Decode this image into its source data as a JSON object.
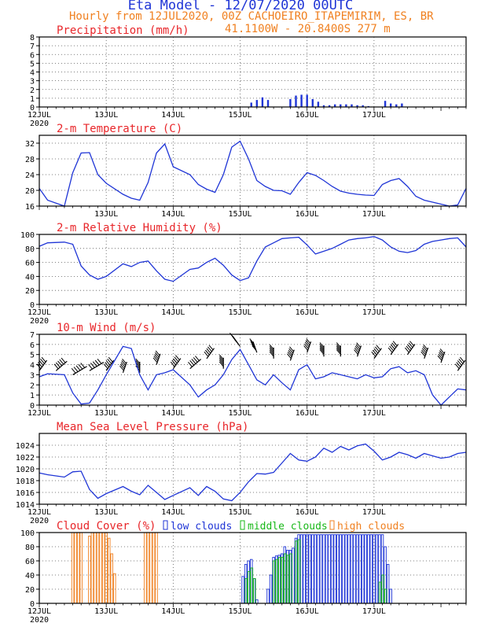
{
  "header": {
    "title": "Eta Model - 12/07/2020 00UTC",
    "subtitle": "Hourly from 12JUL2020, 00Z  CACHOEIRO_ITAPEMIRIM, ES, BR",
    "location": "41.1100W - 20.8400S     277  m"
  },
  "colors": {
    "title": "#1f35d6",
    "orange": "#f08020",
    "red": "#e8262a",
    "blue": "#1f35d6",
    "green": "#18b818",
    "barbs": "#000000"
  },
  "chart_data": [
    {
      "id": "precip",
      "type": "bar",
      "title": "Precipitation (mm/h)",
      "ylim": [
        0,
        8
      ],
      "yticks": [
        0,
        1,
        2,
        3,
        4,
        5,
        6,
        7,
        8
      ],
      "x_labels": [
        "12JUL",
        "13JUL",
        "14JUL",
        "15JUL",
        "16JUL",
        "17JUL"
      ],
      "year_label": "2020",
      "x_hours": [
        76,
        78,
        80,
        82,
        90,
        92,
        94,
        96,
        98,
        100,
        102,
        104,
        106,
        108,
        110,
        112,
        114,
        116,
        118,
        124,
        126,
        128,
        130
      ],
      "values": [
        0.5,
        0.8,
        1.1,
        0.8,
        0.9,
        1.3,
        1.4,
        1.4,
        0.9,
        0.6,
        0.2,
        0.2,
        0.3,
        0.3,
        0.3,
        0.3,
        0.2,
        0.2,
        0.1,
        0.7,
        0.4,
        0.3,
        0.4
      ]
    },
    {
      "id": "temp",
      "type": "line",
      "title": "2-m Temperature (C)",
      "ylim": [
        16,
        34
      ],
      "yticks": [
        16,
        20,
        24,
        28,
        32
      ],
      "x_labels": [
        "12JUL",
        "13JUL",
        "14JUL",
        "15JUL",
        "16JUL",
        "17JUL"
      ],
      "year_label": "",
      "x": [
        0,
        3,
        9,
        12,
        15,
        18,
        21,
        24,
        30,
        33,
        36,
        39,
        42,
        45,
        48,
        54,
        57,
        60,
        63,
        66,
        69,
        72,
        75,
        78,
        81,
        84,
        87,
        90,
        93,
        96,
        99,
        102,
        105,
        108,
        111,
        114,
        117,
        120,
        123,
        126,
        129,
        132,
        135,
        138,
        141,
        144,
        147,
        150,
        153
      ],
      "values": [
        20.5,
        17.5,
        16.0,
        24.5,
        29.5,
        29.6,
        24.0,
        21.8,
        19.0,
        18.0,
        17.5,
        22.0,
        29.5,
        31.8,
        26.0,
        24.0,
        21.5,
        20.3,
        19.5,
        24.0,
        31.0,
        32.5,
        28.0,
        22.5,
        21.0,
        20.0,
        19.9,
        19.0,
        22.0,
        24.5,
        23.8,
        22.5,
        21.0,
        19.8,
        19.3,
        19.0,
        18.8,
        18.7,
        21.5,
        22.5,
        23.0,
        21.0,
        18.5,
        17.5,
        17.0,
        16.5,
        16.0,
        16.3,
        20.5
      ]
    },
    {
      "id": "rh",
      "type": "line",
      "title": "2-m Relative Humidity (%)",
      "ylim": [
        0,
        100
      ],
      "yticks": [
        0,
        20,
        40,
        60,
        80,
        100
      ],
      "x_labels": [
        "12JUL",
        "13JUL",
        "14JUL",
        "15JUL",
        "16JUL",
        "17JUL"
      ],
      "year_label": "2020",
      "x": [
        0,
        3,
        9,
        12,
        15,
        18,
        21,
        24,
        30,
        33,
        36,
        39,
        42,
        45,
        48,
        54,
        57,
        60,
        63,
        66,
        69,
        72,
        75,
        78,
        81,
        84,
        87,
        90,
        93,
        96,
        99,
        102,
        105,
        108,
        111,
        114,
        117,
        120,
        123,
        126,
        129,
        132,
        135,
        138,
        141,
        144,
        147,
        150,
        153
      ],
      "values": [
        83,
        88,
        89,
        86,
        55,
        42,
        36,
        40,
        58,
        54,
        60,
        62,
        48,
        36,
        33,
        50,
        52,
        60,
        66,
        56,
        42,
        34,
        38,
        62,
        82,
        88,
        94,
        95,
        96,
        85,
        72,
        76,
        80,
        86,
        92,
        94,
        95,
        97,
        92,
        82,
        76,
        74,
        77,
        86,
        90,
        92,
        94,
        95,
        82
      ]
    },
    {
      "id": "wind",
      "type": "line",
      "title": "10-m Wind (m/s)",
      "ylim": [
        0,
        7
      ],
      "yticks": [
        0,
        1,
        2,
        3,
        4,
        5,
        6,
        7
      ],
      "x_labels": [
        "12JUL",
        "13JUL",
        "14JUL",
        "15JUL",
        "16JUL",
        "17JUL"
      ],
      "year_label": "",
      "x": [
        0,
        3,
        9,
        12,
        15,
        18,
        21,
        24,
        30,
        33,
        36,
        39,
        42,
        45,
        48,
        54,
        57,
        60,
        63,
        66,
        69,
        72,
        75,
        78,
        81,
        84,
        87,
        90,
        93,
        96,
        99,
        102,
        105,
        108,
        111,
        114,
        117,
        120,
        123,
        126,
        129,
        132,
        135,
        138,
        141,
        144,
        147,
        150,
        153
      ],
      "values": [
        2.8,
        3.1,
        3.0,
        1.2,
        0.1,
        0.2,
        1.5,
        3.0,
        5.8,
        5.6,
        3.0,
        1.5,
        3.0,
        3.2,
        3.5,
        2.0,
        0.8,
        1.5,
        2.0,
        3.0,
        4.5,
        5.5,
        4.0,
        2.5,
        2.0,
        3.0,
        2.2,
        1.5,
        3.5,
        4.0,
        2.6,
        2.8,
        3.2,
        3.0,
        2.8,
        2.6,
        3.0,
        2.7,
        2.8,
        3.6,
        3.8,
        3.2,
        3.4,
        3.0,
        1.0,
        0.0,
        0.8,
        1.6,
        1.5
      ],
      "barbs_x": [
        0,
        6,
        12,
        18,
        24,
        30,
        36,
        42,
        48,
        54,
        60,
        66,
        72,
        78,
        84,
        90,
        96,
        102,
        108,
        114,
        120,
        126,
        132,
        138,
        144,
        150
      ],
      "barbs_speed": [
        3.4,
        3.4,
        3.0,
        3.4,
        3.4,
        3.2,
        3.2,
        4.0,
        3.6,
        3.6,
        4.6,
        3.6,
        5.8,
        5.2,
        4.6,
        4.4,
        5.2,
        4.8,
        4.8,
        4.8,
        4.6,
        5.0,
        5.0,
        4.6,
        4.2,
        3.4
      ],
      "barbs_dir_deg": [
        160,
        150,
        140,
        140,
        160,
        170,
        180,
        170,
        160,
        150,
        160,
        180,
        200,
        190,
        180,
        170,
        170,
        180,
        180,
        170,
        160,
        160,
        160,
        170,
        170,
        160
      ]
    },
    {
      "id": "mslp",
      "type": "line",
      "title": "Mean Sea Level Pressure (hPa)",
      "ylim": [
        1014,
        1026
      ],
      "yticks": [
        1014,
        1016,
        1018,
        1020,
        1022,
        1024
      ],
      "x_labels": [
        "12JUL",
        "13JUL",
        "14JUL",
        "15JUL",
        "16JUL",
        "17JUL"
      ],
      "year_label": "2020",
      "x": [
        0,
        3,
        9,
        12,
        15,
        18,
        21,
        24,
        30,
        33,
        36,
        39,
        42,
        45,
        48,
        54,
        57,
        60,
        63,
        66,
        69,
        72,
        75,
        78,
        81,
        84,
        87,
        90,
        93,
        96,
        99,
        102,
        105,
        108,
        111,
        114,
        117,
        120,
        123,
        126,
        129,
        132,
        135,
        138,
        141,
        144,
        147,
        150,
        153
      ],
      "values": [
        1019.3,
        1019.0,
        1018.6,
        1019.5,
        1019.6,
        1016.5,
        1015.0,
        1015.8,
        1017.0,
        1016.2,
        1015.6,
        1017.2,
        1016.0,
        1014.8,
        1015.5,
        1016.8,
        1015.5,
        1017.0,
        1016.2,
        1014.9,
        1014.6,
        1016.0,
        1017.8,
        1019.2,
        1019.1,
        1019.4,
        1021.0,
        1022.6,
        1021.5,
        1021.3,
        1022.0,
        1023.5,
        1022.8,
        1023.8,
        1023.2,
        1023.9,
        1024.2,
        1023.0,
        1021.5,
        1022.0,
        1022.8,
        1022.4,
        1021.8,
        1022.6,
        1022.2,
        1021.8,
        1022.0,
        1022.6,
        1022.8
      ]
    },
    {
      "id": "cloud",
      "type": "bar",
      "title": "Cloud Cover (%)",
      "legend": [
        "low clouds",
        "middle clouds",
        "high clouds"
      ],
      "ylim": [
        0,
        100
      ],
      "yticks": [
        0,
        20,
        40,
        60,
        80,
        100
      ],
      "x_labels": [
        "12JUL",
        "13JUL",
        "14JUL",
        "15JUL",
        "16JUL",
        "17JUL"
      ],
      "year_label": "2020",
      "high_hours": [
        12,
        13,
        14,
        15,
        18,
        19,
        20,
        21,
        22,
        23,
        24,
        25,
        26,
        27,
        38,
        39,
        40,
        41,
        42
      ],
      "high_values": [
        100,
        100,
        100,
        100,
        95,
        100,
        100,
        100,
        100,
        100,
        100,
        92,
        70,
        42,
        100,
        100,
        100,
        100,
        100
      ],
      "low_hours": [
        73,
        74,
        75,
        76,
        77,
        78,
        82,
        83,
        84,
        85,
        86,
        87,
        88,
        89,
        90,
        91,
        92,
        93,
        94,
        95,
        96,
        97,
        98,
        99,
        100,
        101,
        102,
        103,
        104,
        105,
        106,
        107,
        108,
        109,
        110,
        111,
        112,
        113,
        114,
        115,
        116,
        117,
        118,
        119,
        120,
        121,
        122,
        123,
        124,
        125,
        126
      ],
      "low_values": [
        38,
        55,
        60,
        62,
        35,
        5,
        20,
        40,
        65,
        67,
        68,
        70,
        80,
        75,
        75,
        78,
        92,
        97,
        97,
        97,
        97,
        97,
        97,
        97,
        97,
        97,
        97,
        97,
        97,
        97,
        97,
        97,
        97,
        97,
        97,
        97,
        97,
        97,
        97,
        97,
        97,
        97,
        97,
        97,
        97,
        97,
        97,
        97,
        80,
        55,
        20
      ],
      "mid_hours": [
        74,
        75,
        76,
        77,
        84,
        85,
        86,
        87,
        88,
        89,
        90,
        92,
        93,
        122,
        123,
        124
      ],
      "mid_values": [
        35,
        45,
        50,
        35,
        60,
        62,
        65,
        65,
        70,
        68,
        70,
        88,
        90,
        30,
        40,
        20
      ]
    }
  ]
}
